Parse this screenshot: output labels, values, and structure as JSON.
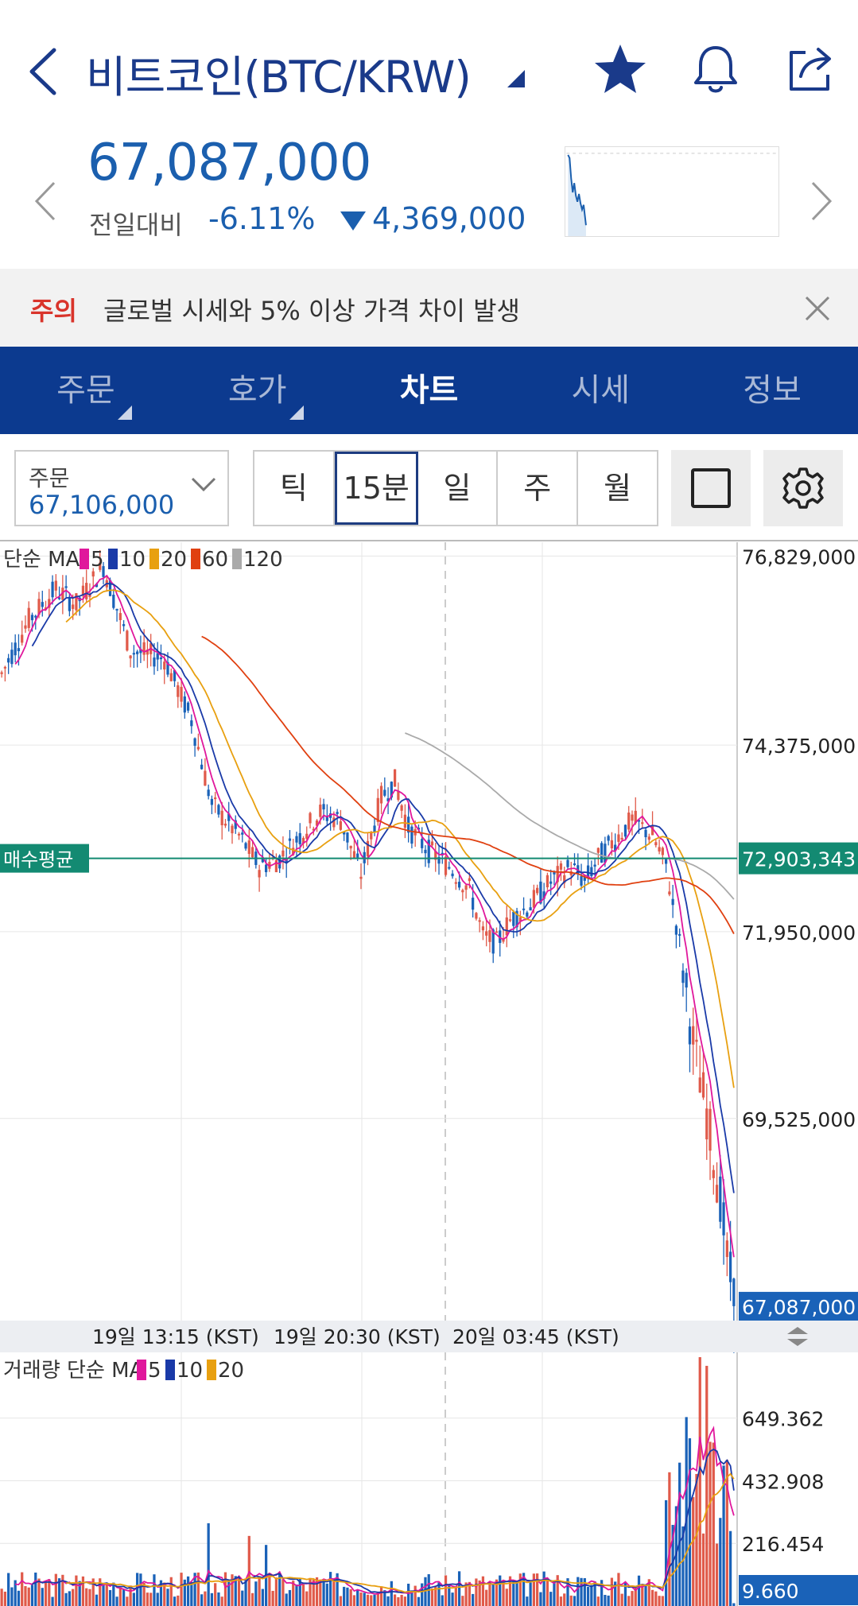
{
  "header": {
    "title": "비트코인(BTC/KRW)",
    "icons": [
      "back-icon",
      "caret-icon",
      "star-icon",
      "bell-icon",
      "share-icon"
    ]
  },
  "price": {
    "current": "67,087,000",
    "change_label": "전일대비",
    "change_pct": "-6.11%",
    "change_amount": "4,369,000",
    "color": "#1b5fae"
  },
  "notice": {
    "tag": "주의",
    "text": "글로벌 시세와 5% 이상 가격 차이 발생"
  },
  "tabs": [
    {
      "label": "주문",
      "active": false
    },
    {
      "label": "호가",
      "active": false
    },
    {
      "label": "차트",
      "active": true
    },
    {
      "label": "시세",
      "active": false
    },
    {
      "label": "정보",
      "active": false
    }
  ],
  "toolbar": {
    "order_label": "주문",
    "order_value": "67,106,000",
    "periods": [
      {
        "label": "틱",
        "active": false
      },
      {
        "label": "15분",
        "active": true
      },
      {
        "label": "일",
        "active": false
      },
      {
        "label": "주",
        "active": false
      },
      {
        "label": "월",
        "active": false
      }
    ]
  },
  "chart_data": [
    {
      "type": "candlestick",
      "legend": {
        "prefix": "단순 MA",
        "entries": [
          {
            "name": "5",
            "color": "#e0179c"
          },
          {
            "name": "10",
            "color": "#1a3aa8"
          },
          {
            "name": "20",
            "color": "#e8a010"
          },
          {
            "name": "60",
            "color": "#e04010"
          },
          {
            "name": "120",
            "color": "#aaaaaa"
          }
        ]
      },
      "y_ticks": [
        "76,829,000",
        "74,375,000",
        "71,950,000",
        "69,525,000"
      ],
      "ylim": [
        66900000,
        77050000
      ],
      "avg_buy": {
        "label": "매수평균",
        "value": 72903343,
        "value_label": "72,903,343"
      },
      "current_label": "67,087,000",
      "current_value": 67087000,
      "x_labels": [
        "19일 13:15 (KST)",
        "19일 20:30 (KST)",
        "20일 03:45 (KST)"
      ],
      "up_color": "#e05a4a",
      "down_color": "#1a62b8"
    },
    {
      "type": "bar",
      "legend": {
        "prefix": "거래량 단순 MA",
        "entries": [
          {
            "name": "5",
            "color": "#e0179c"
          },
          {
            "name": "10",
            "color": "#1a3aa8"
          },
          {
            "name": "20",
            "color": "#e8a010"
          }
        ]
      },
      "y_ticks": [
        "649.362",
        "432.908",
        "216.454"
      ],
      "ylim": [
        0,
        860
      ],
      "current_label": "9.660"
    }
  ]
}
